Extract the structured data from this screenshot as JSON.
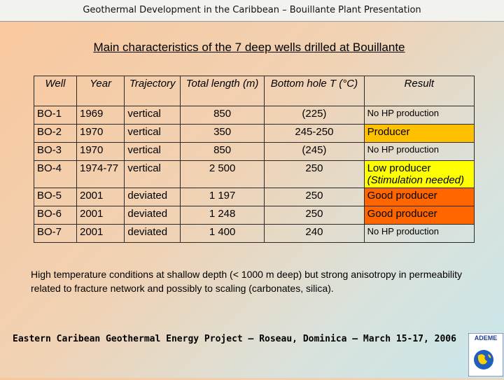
{
  "header": {
    "text": "Geothermal Development in the Caribbean – Bouillante Plant Presentation"
  },
  "title": "Main characteristics of the 7 deep wells drilled at Bouillante",
  "table": {
    "headers": [
      "Well",
      "Year",
      "Trajectory",
      "Total length (m)",
      "Bottom hole T (°C)",
      "Result"
    ],
    "rows": [
      {
        "well": "BO-1",
        "year": "1969",
        "trajectory": "vertical",
        "length": "850",
        "temp": "(225)",
        "result": "No HP production",
        "result_color": ""
      },
      {
        "well": "BO-2",
        "year": "1970",
        "trajectory": "vertical",
        "length": "350",
        "temp": "245-250",
        "result": "Producer",
        "result_color": "#ffc000"
      },
      {
        "well": "BO-3",
        "year": "1970",
        "trajectory": "vertical",
        "length": "850",
        "temp": "(245)",
        "result": "No HP production",
        "result_color": ""
      },
      {
        "well": "BO-4",
        "year": "1974-77",
        "trajectory": "vertical",
        "length": "2 500",
        "temp": "250",
        "result": "Low producer (Stimulation needed)",
        "result_color": "#ffff00"
      },
      {
        "well": "BO-5",
        "year": "2001",
        "trajectory": "deviated",
        "length": "1 197",
        "temp": "250",
        "result": "Good producer",
        "result_color": "#ff6600"
      },
      {
        "well": "BO-6",
        "year": "2001",
        "trajectory": "deviated",
        "length": "1 248",
        "temp": "250",
        "result": "Good producer",
        "result_color": "#ff6600"
      },
      {
        "well": "BO-7",
        "year": "2001",
        "trajectory": "deviated",
        "length": "1 400",
        "temp": "240",
        "result": "No HP production",
        "result_color": ""
      }
    ]
  },
  "note": "High temperature conditions at shallow depth (< 1000 m deep) but strong anisotropy in permeability related to fracture network and possibly to scaling (carbonates, silica).",
  "footer": "Eastern Caribean Geothermal Energy Project – Roseau, Dominica – March 15-17, 2006",
  "logo": {
    "text": "ADEME",
    "icon": "globe-icon"
  }
}
